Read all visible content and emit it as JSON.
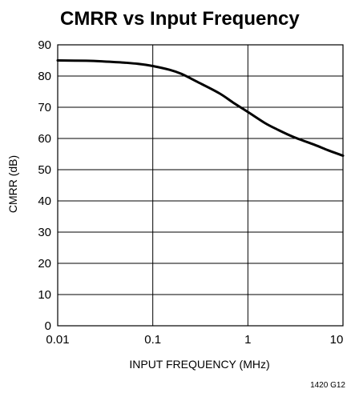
{
  "chart_data": {
    "type": "line",
    "title": "CMRR vs Input Frequency",
    "xlabel": "INPUT FREQUENCY (MHz)",
    "ylabel": "CMRR (dB)",
    "x_scale": "log",
    "xlim": [
      0.01,
      10
    ],
    "ylim": [
      0,
      90
    ],
    "x_ticks": [
      0.01,
      0.1,
      1,
      10
    ],
    "x_tick_labels": [
      "0.01",
      "0.1",
      "1",
      "10"
    ],
    "y_ticks": [
      0,
      10,
      20,
      30,
      40,
      50,
      60,
      70,
      80,
      90
    ],
    "y_tick_labels": [
      "0",
      "10",
      "20",
      "30",
      "40",
      "50",
      "60",
      "70",
      "80",
      "90"
    ],
    "grid": true,
    "series": [
      {
        "color": "#000000",
        "x": [
          0.01,
          0.02,
          0.03,
          0.05,
          0.07,
          0.1,
          0.15,
          0.2,
          0.3,
          0.5,
          0.7,
          1,
          1.5,
          2,
          3,
          5,
          7,
          10
        ],
        "y": [
          85,
          84.9,
          84.7,
          84.3,
          83.9,
          83.2,
          82,
          80.7,
          78,
          74.5,
          71.5,
          68.5,
          65,
          63,
          60.5,
          58,
          56.2,
          54.5
        ]
      }
    ]
  },
  "figure_code": "1420 G12"
}
